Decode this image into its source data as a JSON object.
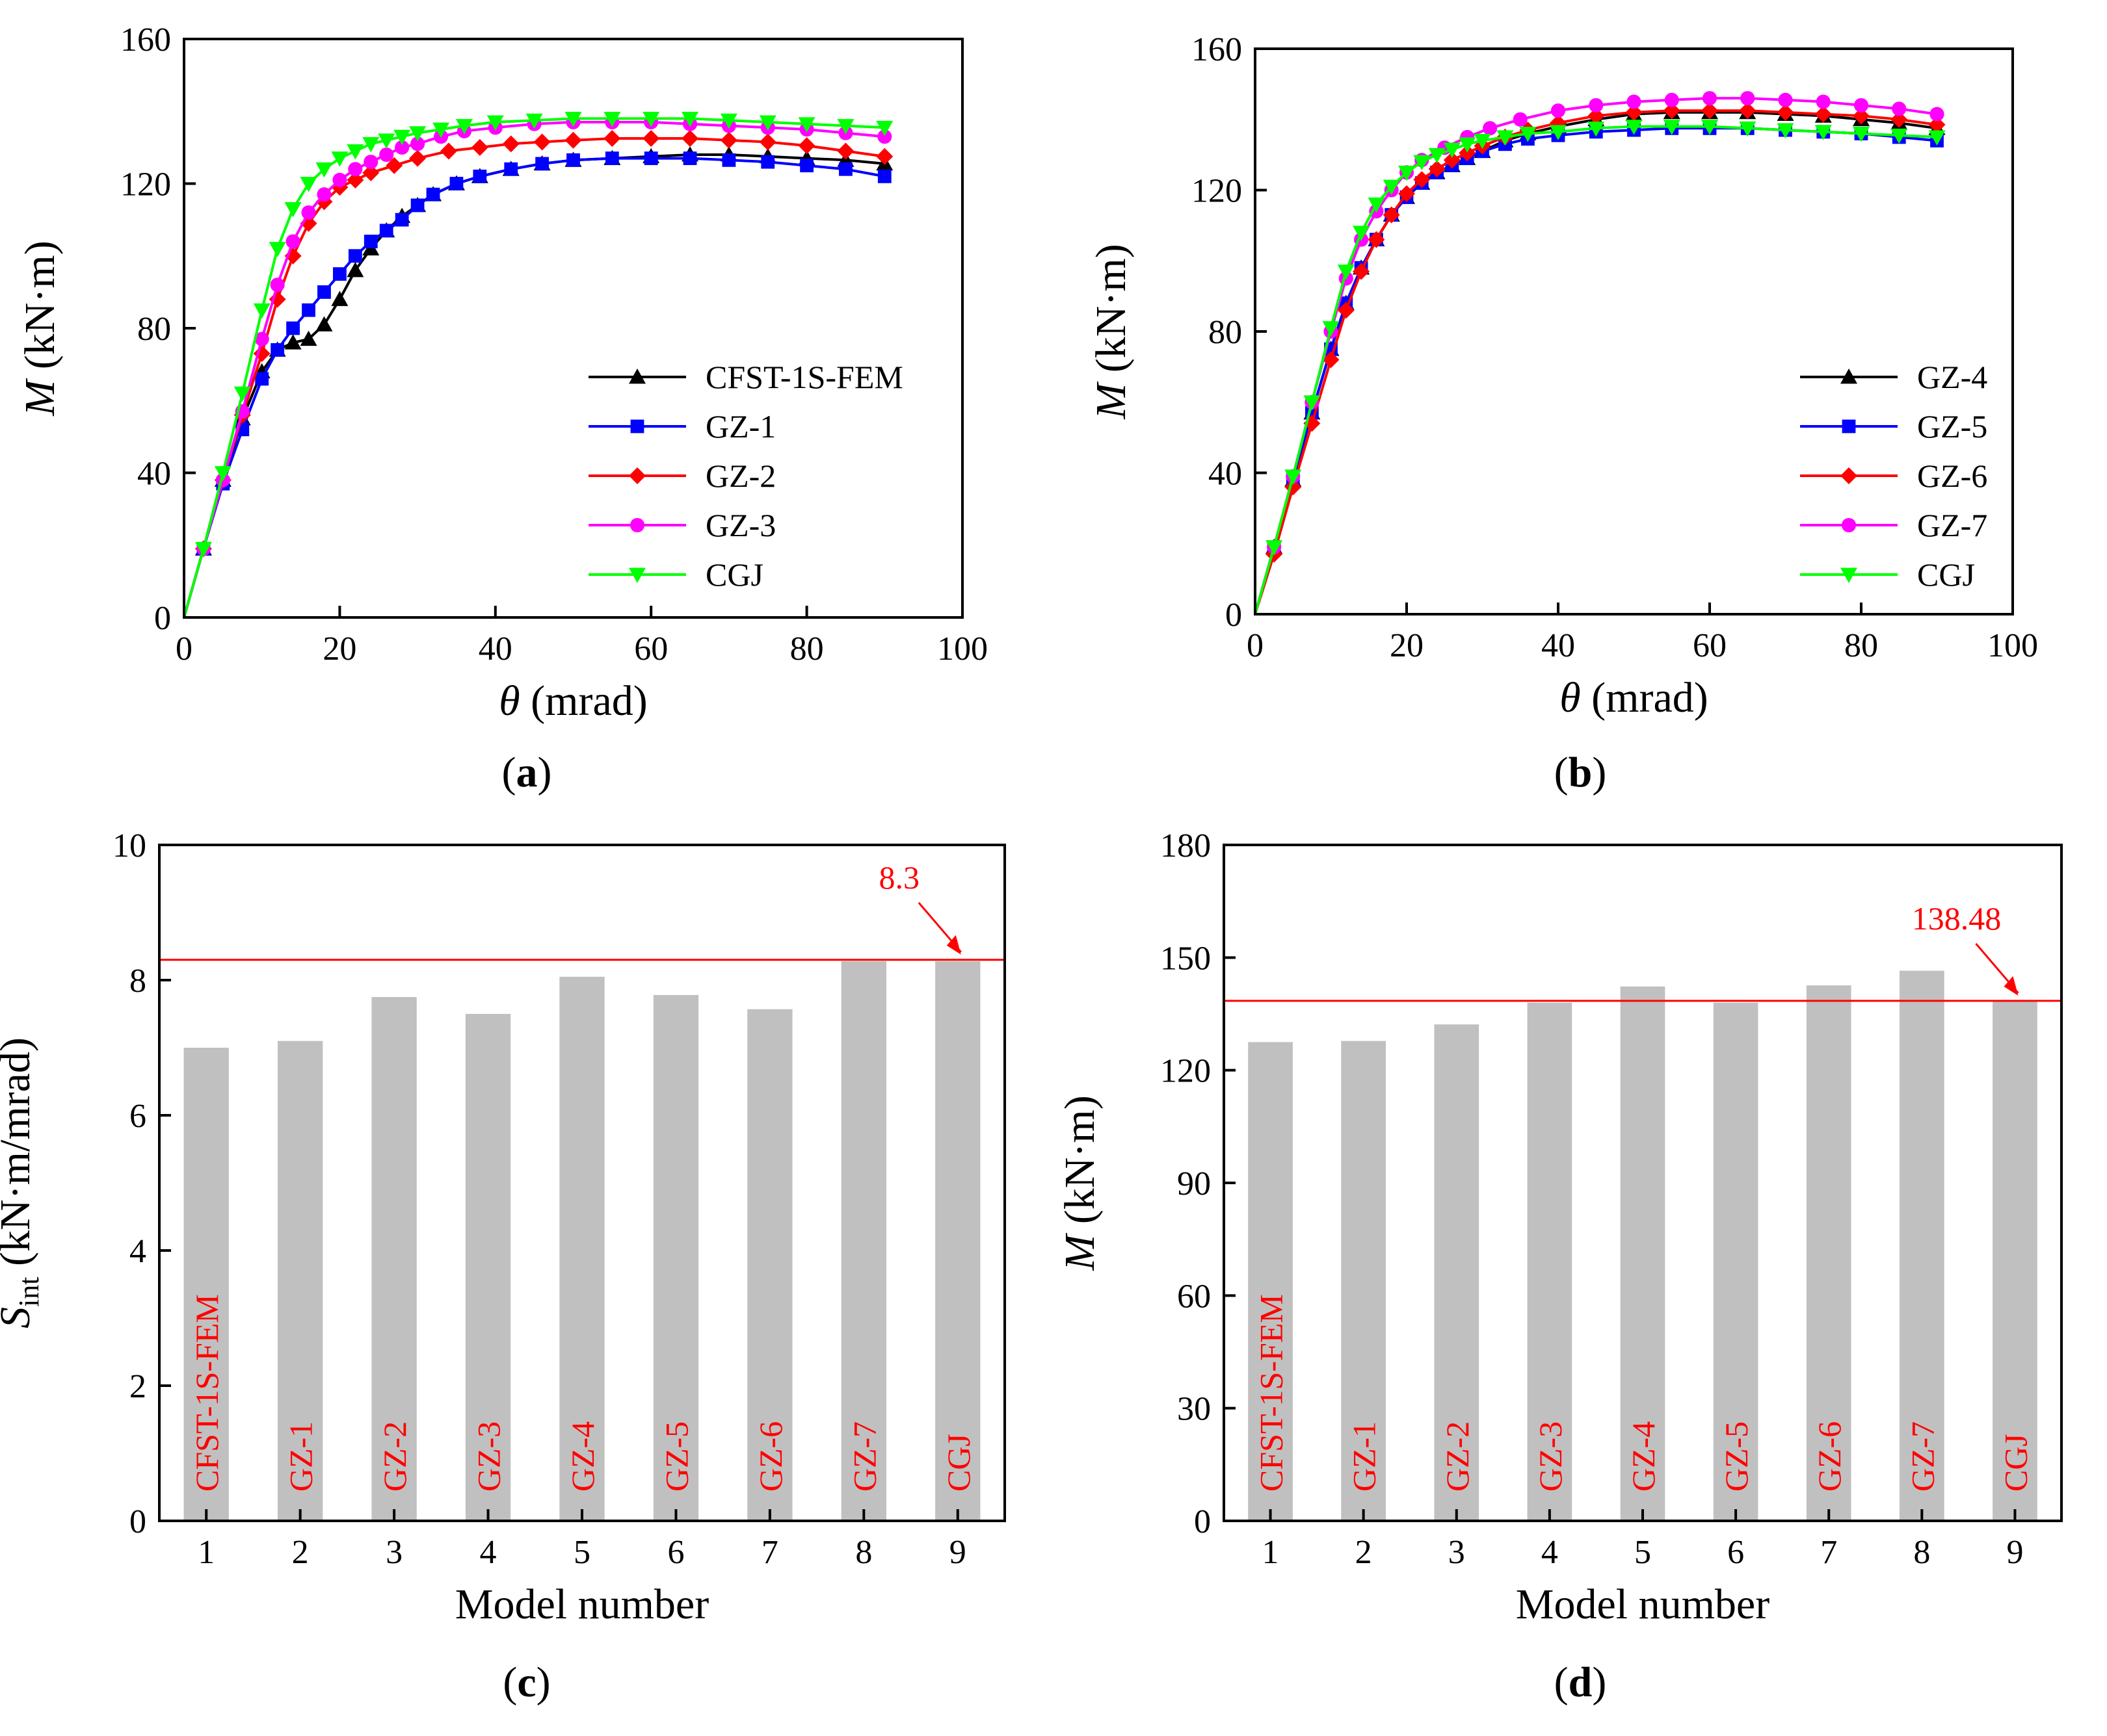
{
  "chart_data": [
    {
      "id": "a",
      "type": "line",
      "caption": "a",
      "xlabel_symbol": "θ",
      "xlabel_unit": "(mrad)",
      "ylabel_symbol": "M",
      "ylabel_unit": "(kN·m)",
      "xlim": [
        0,
        100
      ],
      "ylim": [
        0,
        160
      ],
      "xticks": [
        0,
        20,
        40,
        60,
        80,
        100
      ],
      "yticks": [
        0,
        40,
        80,
        120,
        160
      ],
      "legend_position": "bottom-right",
      "series": [
        {
          "name": "CFST-1S-FEM",
          "color": "#000000",
          "marker": "triangle-up",
          "x": [
            0,
            2.5,
            5,
            7.5,
            10,
            12,
            14,
            16,
            18,
            20,
            22,
            24,
            26,
            28,
            30,
            32,
            35,
            38,
            42,
            46,
            50,
            55,
            60,
            65,
            70,
            75,
            80,
            85,
            90
          ],
          "y": [
            0,
            19,
            38,
            55,
            68,
            74,
            76,
            77,
            81,
            88,
            96,
            102,
            107,
            111,
            114,
            117,
            120,
            122,
            124,
            125.5,
            126.5,
            127,
            127.5,
            128,
            128,
            127.5,
            127,
            126.5,
            125.5
          ]
        },
        {
          "name": "GZ-1",
          "color": "#0000ff",
          "marker": "square",
          "x": [
            0,
            2.5,
            5,
            7.5,
            10,
            12,
            14,
            16,
            18,
            20,
            22,
            24,
            26,
            28,
            30,
            32,
            35,
            38,
            42,
            46,
            50,
            55,
            60,
            65,
            70,
            75,
            80,
            85,
            90
          ],
          "y": [
            0,
            19,
            37,
            52,
            66,
            74,
            80,
            85,
            90,
            95,
            100,
            104,
            107,
            110,
            114,
            117,
            120,
            122,
            124,
            125.5,
            126.5,
            127,
            127,
            127,
            126.5,
            126,
            125,
            124,
            122
          ]
        },
        {
          "name": "GZ-2",
          "color": "#ff0000",
          "marker": "diamond",
          "x": [
            0,
            2.5,
            5,
            7.5,
            10,
            12,
            14,
            16,
            18,
            20,
            22,
            24,
            27,
            30,
            34,
            38,
            42,
            46,
            50,
            55,
            60,
            65,
            70,
            75,
            80,
            85,
            90
          ],
          "y": [
            0,
            19,
            38,
            56,
            73,
            88,
            100,
            109,
            115,
            119,
            121,
            123,
            125,
            127,
            129,
            130,
            131,
            131.5,
            132,
            132.5,
            132.5,
            132.5,
            132,
            131.5,
            130.5,
            129,
            127.5
          ]
        },
        {
          "name": "GZ-3",
          "color": "#ff00ff",
          "marker": "circle",
          "x": [
            0,
            2.5,
            5,
            7.5,
            10,
            12,
            14,
            16,
            18,
            20,
            22,
            24,
            26,
            28,
            30,
            33,
            36,
            40,
            45,
            50,
            55,
            60,
            65,
            70,
            75,
            80,
            85,
            90
          ],
          "y": [
            0,
            19,
            38,
            57,
            77,
            92,
            104,
            112,
            117,
            121,
            124,
            126,
            128,
            130,
            131,
            133,
            134.5,
            135.5,
            136.5,
            137,
            137,
            137,
            136.5,
            136,
            135.5,
            135,
            134,
            133
          ]
        },
        {
          "name": "CGJ",
          "color": "#00ff00",
          "marker": "triangle-down",
          "x": [
            0,
            2.5,
            5,
            7.5,
            10,
            12,
            14,
            16,
            18,
            20,
            22,
            24,
            26,
            28,
            30,
            33,
            36,
            40,
            45,
            50,
            55,
            60,
            65,
            70,
            75,
            80,
            85,
            90
          ],
          "y": [
            0,
            19,
            40,
            62,
            85,
            102,
            113,
            120,
            124,
            127,
            129,
            131,
            132,
            133,
            134,
            135,
            136,
            137,
            137.5,
            138,
            138,
            138,
            138,
            137.5,
            137,
            136.5,
            136,
            135.5
          ]
        }
      ]
    },
    {
      "id": "b",
      "type": "line",
      "caption": "b",
      "xlabel_symbol": "θ",
      "xlabel_unit": "(mrad)",
      "ylabel_symbol": "M",
      "ylabel_unit": "(kN·m)",
      "xlim": [
        0,
        100
      ],
      "ylim": [
        0,
        160
      ],
      "xticks": [
        0,
        20,
        40,
        60,
        80,
        100
      ],
      "yticks": [
        0,
        40,
        80,
        120,
        160
      ],
      "legend_position": "bottom-right",
      "series": [
        {
          "name": "GZ-4",
          "color": "#000000",
          "marker": "triangle-up",
          "x": [
            0,
            2.5,
            5,
            7.5,
            10,
            12,
            14,
            16,
            18,
            20,
            22,
            24,
            26,
            28,
            30,
            33,
            36,
            40,
            45,
            50,
            55,
            60,
            65,
            70,
            75,
            80,
            85,
            90
          ],
          "y": [
            0,
            19,
            38,
            57,
            75,
            88,
            98,
            106,
            113,
            118,
            122,
            125,
            127,
            129,
            131,
            134,
            136,
            138,
            140,
            141.5,
            142,
            142,
            142,
            141.5,
            141,
            140,
            139,
            137.5
          ]
        },
        {
          "name": "GZ-5",
          "color": "#0000ff",
          "marker": "square",
          "x": [
            0,
            2.5,
            5,
            7.5,
            10,
            12,
            14,
            16,
            18,
            20,
            22,
            24,
            26,
            28,
            30,
            33,
            36,
            40,
            45,
            50,
            55,
            60,
            65,
            70,
            75,
            80,
            85,
            90
          ],
          "y": [
            0,
            19,
            38,
            57,
            75,
            88,
            98,
            106,
            113,
            118,
            122,
            125,
            127,
            129,
            131,
            133,
            134.5,
            135.5,
            136.5,
            137,
            137.5,
            137.5,
            137.5,
            137,
            136.5,
            136,
            135,
            134
          ]
        },
        {
          "name": "GZ-6",
          "color": "#ff0000",
          "marker": "diamond",
          "x": [
            0,
            2.5,
            5,
            7.5,
            10,
            12,
            14,
            16,
            18,
            20,
            22,
            24,
            26,
            28,
            30,
            33,
            36,
            40,
            45,
            50,
            55,
            60,
            65,
            70,
            75,
            80,
            85,
            90
          ],
          "y": [
            0,
            17,
            36,
            54,
            72,
            86,
            97,
            106,
            113,
            119,
            123,
            126,
            128.5,
            130.5,
            132.5,
            135,
            137,
            139,
            141,
            142,
            142.5,
            142.5,
            142.5,
            142,
            141.5,
            141,
            140,
            138.5
          ]
        },
        {
          "name": "GZ-7",
          "color": "#ff00ff",
          "marker": "circle",
          "x": [
            0,
            2.5,
            5,
            7.5,
            10,
            12,
            14,
            16,
            18,
            20,
            22,
            25,
            28,
            31,
            35,
            40,
            45,
            50,
            55,
            60,
            65,
            70,
            75,
            80,
            85,
            90
          ],
          "y": [
            0,
            19,
            39,
            60,
            80,
            95,
            106,
            114,
            120,
            125,
            128.5,
            132,
            135,
            137.5,
            140,
            142.5,
            144,
            145,
            145.5,
            146,
            146,
            145.5,
            145,
            144,
            143,
            141.5
          ]
        },
        {
          "name": "CGJ",
          "color": "#00ff00",
          "marker": "triangle-down",
          "x": [
            0,
            2.5,
            5,
            7.5,
            10,
            12,
            14,
            16,
            18,
            20,
            22,
            24,
            26,
            28,
            30,
            33,
            36,
            40,
            45,
            50,
            55,
            60,
            65,
            70,
            75,
            80,
            85,
            90
          ],
          "y": [
            0,
            19,
            39,
            60,
            81,
            97,
            108,
            116,
            121,
            125,
            128,
            130,
            131.5,
            133,
            134,
            135,
            136,
            136.5,
            137.5,
            138,
            138,
            138,
            137.5,
            137,
            136.5,
            136,
            135.5,
            135
          ]
        }
      ]
    },
    {
      "id": "c",
      "type": "bar",
      "caption": "c",
      "xlabel": "Model number",
      "ylabel_symbol": "S",
      "ylabel_subscript": "int",
      "ylabel_unit": "(kN·m/mrad)",
      "ylim": [
        0,
        10
      ],
      "yticks": [
        0,
        2,
        4,
        6,
        8,
        10
      ],
      "categories": [
        "1",
        "2",
        "3",
        "4",
        "5",
        "6",
        "7",
        "8",
        "9"
      ],
      "bar_labels": [
        "CFST-1S-FEM",
        "GZ-1",
        "GZ-2",
        "GZ-3",
        "GZ-4",
        "GZ-5",
        "GZ-6",
        "GZ-7",
        "CGJ"
      ],
      "values": [
        7.0,
        7.1,
        7.75,
        7.5,
        8.05,
        7.78,
        7.57,
        8.28,
        8.28
      ],
      "bar_color": "#c0c0c0",
      "reference_value": 8.3,
      "reference_label": "8.3",
      "reference_color": "#ff0000"
    },
    {
      "id": "d",
      "type": "bar",
      "caption": "d",
      "xlabel": "Model number",
      "ylabel_symbol": "M",
      "ylabel_unit": "(kN·m)",
      "ylim": [
        0,
        180
      ],
      "yticks": [
        0,
        30,
        60,
        90,
        120,
        150,
        180
      ],
      "categories": [
        "1",
        "2",
        "3",
        "4",
        "5",
        "6",
        "7",
        "8",
        "9"
      ],
      "bar_labels": [
        "CFST-1S-FEM",
        "GZ-1",
        "GZ-2",
        "GZ-3",
        "GZ-4",
        "GZ-5",
        "GZ-6",
        "GZ-7",
        "CGJ"
      ],
      "values": [
        127.5,
        127.8,
        132.2,
        138.0,
        142.3,
        138.0,
        142.6,
        146.5,
        138.48
      ],
      "bar_color": "#c0c0c0",
      "reference_value": 138.48,
      "reference_label": "138.48",
      "reference_color": "#ff0000"
    }
  ]
}
